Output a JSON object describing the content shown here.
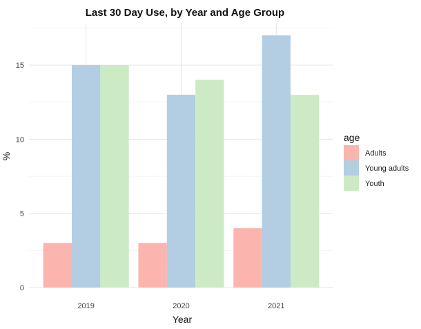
{
  "chart_data": {
    "type": "bar",
    "title": "Last 30 Day Use, by Year and Age Group",
    "xlabel": "Year",
    "ylabel": "%",
    "categories": [
      "2019",
      "2020",
      "2021"
    ],
    "series": [
      {
        "name": "Adults",
        "values": [
          3,
          3,
          4
        ],
        "color": "#FBB4AE"
      },
      {
        "name": "Young adults",
        "values": [
          15,
          13,
          17
        ],
        "color": "#B3CDE3"
      },
      {
        "name": "Youth",
        "values": [
          15,
          14,
          13
        ],
        "color": "#CCEBC5"
      }
    ],
    "ylim": [
      0,
      17.85
    ],
    "yticks": [
      "0",
      "5",
      "10",
      "15"
    ],
    "legend": {
      "title": "age",
      "position": "right"
    },
    "grid": true
  }
}
